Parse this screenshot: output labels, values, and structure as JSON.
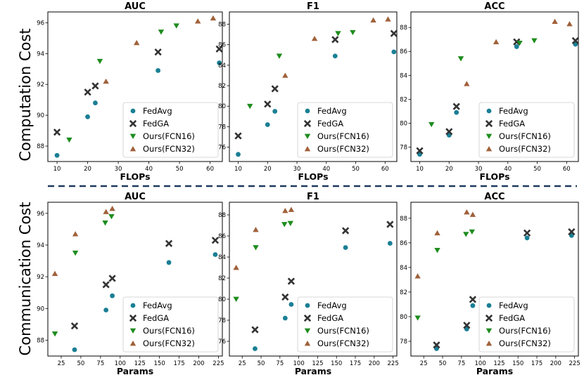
{
  "figure": {
    "row_labels": [
      "Computation Cost",
      "Communication Cost"
    ],
    "legend_entries": [
      {
        "name": "FedAvg",
        "color": "#1a7f94",
        "marker": "circle"
      },
      {
        "name": "FedGA",
        "color": "#333333",
        "marker": "x"
      },
      {
        "name": "Ours(FCN16)",
        "color": "#1e8c1e",
        "marker": "triangle-down"
      },
      {
        "name": "Ours(FCN32)",
        "color": "#a0613a",
        "marker": "triangle-up"
      }
    ],
    "separator_color": "#1f3a5f"
  },
  "chart_data": [
    {
      "type": "scatter",
      "title": "AUC",
      "xlabel": "FLOPs",
      "ylabel": "",
      "xlim": [
        7,
        64
      ],
      "ylim": [
        87,
        96.7
      ],
      "xticks": [
        10,
        20,
        30,
        40,
        50,
        60
      ],
      "yticks": [
        88,
        90,
        92,
        94,
        96
      ],
      "xtick_labels": [
        "10",
        "20",
        "30",
        "40",
        "50",
        "60"
      ],
      "ytick_labels": [
        "88",
        "90",
        "92",
        "94",
        "96"
      ],
      "series": [
        {
          "name": "FedAvg",
          "x": [
            10,
            20,
            22.5,
            43,
            63
          ],
          "y": [
            87.4,
            89.9,
            90.8,
            92.9,
            93.4
          ]
        },
        {
          "name": "FedGA",
          "x": [
            10,
            20,
            22.5,
            43,
            63
          ],
          "y": [
            88.9,
            91.5,
            91.9,
            94.1,
            94.3
          ]
        },
        {
          "name": "Ours(FCN16)",
          "x": [
            14,
            24,
            44,
            49
          ],
          "y": [
            88.4,
            93.5,
            95.4,
            95.8
          ]
        },
        {
          "name": "Ours(FCN32)",
          "x": [
            26,
            36,
            56,
            61
          ],
          "y": [
            92.2,
            94.7,
            96.1,
            96.3
          ]
        }
      ]
    },
    {
      "type": "scatter",
      "title": "F1",
      "xlabel": "FLOPs",
      "ylabel": "",
      "xlim": [
        7,
        64
      ],
      "ylim": [
        74.6,
        89.2
      ],
      "xticks": [
        10,
        20,
        30,
        40,
        50,
        60
      ],
      "yticks": [
        76,
        78,
        80,
        82,
        84,
        86,
        88
      ],
      "xtick_labels": [
        "10",
        "20",
        "30",
        "40",
        "50",
        "60"
      ],
      "ytick_labels": [
        "76",
        "78",
        "80",
        "82",
        "84",
        "86",
        "88"
      ],
      "series": [
        {
          "name": "FedAvg",
          "x": [
            10,
            20,
            22.5,
            43,
            63
          ],
          "y": [
            75.3,
            78.2,
            79.5,
            84.9,
            85.3
          ]
        },
        {
          "name": "FedGA",
          "x": [
            10,
            20,
            22.5,
            43,
            63
          ],
          "y": [
            77.1,
            80.2,
            81.7,
            86.5,
            87.1
          ]
        },
        {
          "name": "Ours(FCN16)",
          "x": [
            14,
            24,
            44,
            49
          ],
          "y": [
            80.0,
            84.9,
            87.1,
            87.2
          ]
        },
        {
          "name": "Ours(FCN32)",
          "x": [
            26,
            36,
            56,
            61
          ],
          "y": [
            83.0,
            86.6,
            88.4,
            88.5
          ]
        }
      ]
    },
    {
      "type": "scatter",
      "title": "ACC",
      "xlabel": "FLOPs",
      "ylabel": "",
      "xlim": [
        7,
        64
      ],
      "ylim": [
        76.8,
        89.3
      ],
      "xticks": [
        10,
        20,
        30,
        40,
        50,
        60
      ],
      "yticks": [
        78,
        80,
        82,
        84,
        86,
        88
      ],
      "xtick_labels": [
        "10",
        "20",
        "30",
        "40",
        "50",
        "60"
      ],
      "ytick_labels": [
        "78",
        "80",
        "82",
        "84",
        "86",
        "88"
      ],
      "series": [
        {
          "name": "FedAvg",
          "x": [
            10,
            20,
            22.5,
            43,
            63
          ],
          "y": [
            77.4,
            79.0,
            80.9,
            86.4,
            86.6
          ]
        },
        {
          "name": "FedGA",
          "x": [
            10,
            20,
            22.5,
            43,
            63
          ],
          "y": [
            77.7,
            79.3,
            81.4,
            86.8,
            86.9
          ]
        },
        {
          "name": "Ours(FCN16)",
          "x": [
            14,
            24,
            44,
            49
          ],
          "y": [
            79.9,
            85.4,
            86.7,
            86.9
          ]
        },
        {
          "name": "Ours(FCN32)",
          "x": [
            26,
            36,
            56,
            61
          ],
          "y": [
            83.3,
            86.8,
            88.5,
            88.3
          ]
        }
      ]
    },
    {
      "type": "scatter",
      "title": "AUC",
      "xlabel": "Params",
      "ylabel": "",
      "xlim": [
        8,
        230
      ],
      "ylim": [
        87,
        96.7
      ],
      "xticks": [
        25,
        50,
        75,
        100,
        125,
        150,
        175,
        200,
        225
      ],
      "yticks": [
        88,
        90,
        92,
        94,
        96
      ],
      "xtick_labels": [
        "25",
        "50",
        "75",
        "100",
        "125",
        "150",
        "175",
        "200",
        "225"
      ],
      "ytick_labels": [
        "88",
        "90",
        "92",
        "94",
        "96"
      ],
      "series": [
        {
          "name": "FedAvg",
          "x": [
            42,
            82,
            90,
            162,
            221
          ],
          "y": [
            87.4,
            89.9,
            90.8,
            92.9,
            93.4
          ]
        },
        {
          "name": "FedGA",
          "x": [
            42,
            82,
            90,
            162,
            221
          ],
          "y": [
            88.9,
            91.5,
            91.9,
            94.1,
            94.3
          ]
        },
        {
          "name": "Ours(FCN16)",
          "x": [
            17,
            43,
            81,
            89
          ],
          "y": [
            88.4,
            93.5,
            95.4,
            95.8
          ]
        },
        {
          "name": "Ours(FCN32)",
          "x": [
            17,
            43,
            82,
            90
          ],
          "y": [
            92.2,
            94.7,
            96.1,
            96.3
          ]
        }
      ]
    },
    {
      "type": "scatter",
      "title": "F1",
      "xlabel": "Params",
      "ylabel": "",
      "xlim": [
        8,
        230
      ],
      "ylim": [
        74.6,
        89.2
      ],
      "xticks": [
        25,
        50,
        75,
        100,
        125,
        150,
        175,
        200,
        225
      ],
      "yticks": [
        76,
        78,
        80,
        82,
        84,
        86,
        88
      ],
      "xtick_labels": [
        "25",
        "50",
        "75",
        "100",
        "125",
        "150",
        "175",
        "200",
        "225"
      ],
      "ytick_labels": [
        "76",
        "78",
        "80",
        "82",
        "84",
        "86",
        "88"
      ],
      "series": [
        {
          "name": "FedAvg",
          "x": [
            42,
            82,
            90,
            162,
            221
          ],
          "y": [
            75.3,
            78.2,
            79.5,
            84.9,
            85.3
          ]
        },
        {
          "name": "FedGA",
          "x": [
            42,
            82,
            90,
            162,
            221
          ],
          "y": [
            77.1,
            80.2,
            81.7,
            86.5,
            87.1
          ]
        },
        {
          "name": "Ours(FCN16)",
          "x": [
            17,
            43,
            81,
            89
          ],
          "y": [
            80.0,
            84.9,
            87.1,
            87.2
          ]
        },
        {
          "name": "Ours(FCN32)",
          "x": [
            17,
            43,
            82,
            90
          ],
          "y": [
            83.0,
            86.6,
            88.4,
            88.5
          ]
        }
      ]
    },
    {
      "type": "scatter",
      "title": "ACC",
      "xlabel": "Params",
      "ylabel": "",
      "xlim": [
        8,
        230
      ],
      "ylim": [
        76.8,
        89.3
      ],
      "xticks": [
        25,
        50,
        75,
        100,
        125,
        150,
        175,
        200,
        225
      ],
      "yticks": [
        78,
        80,
        82,
        84,
        86,
        88
      ],
      "xtick_labels": [
        "25",
        "50",
        "75",
        "100",
        "125",
        "150",
        "175",
        "200",
        "225"
      ],
      "ytick_labels": [
        "78",
        "80",
        "82",
        "84",
        "86",
        "88"
      ],
      "series": [
        {
          "name": "FedAvg",
          "x": [
            42,
            82,
            90,
            162,
            221
          ],
          "y": [
            77.4,
            79.0,
            80.9,
            86.4,
            86.6
          ]
        },
        {
          "name": "FedGA",
          "x": [
            42,
            82,
            90,
            162,
            221
          ],
          "y": [
            77.7,
            79.3,
            81.4,
            86.8,
            86.9
          ]
        },
        {
          "name": "Ours(FCN16)",
          "x": [
            17,
            43,
            81,
            89
          ],
          "y": [
            79.9,
            85.4,
            86.7,
            86.9
          ]
        },
        {
          "name": "Ours(FCN32)",
          "x": [
            17,
            43,
            82,
            90
          ],
          "y": [
            83.3,
            86.8,
            88.5,
            88.3
          ]
        }
      ]
    }
  ]
}
